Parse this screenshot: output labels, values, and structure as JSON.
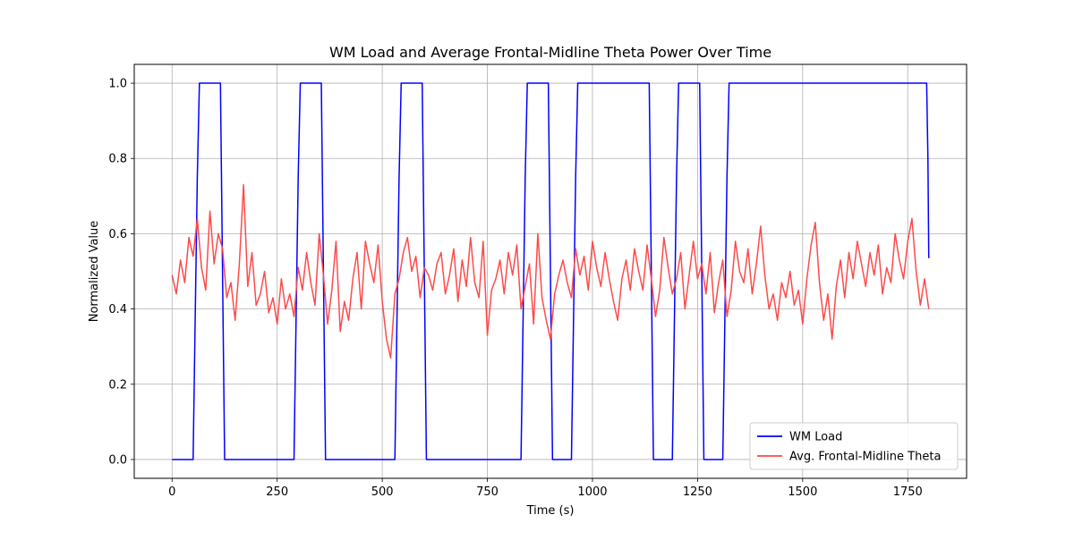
{
  "chart_data": {
    "type": "line",
    "title": "WM Load and Average Frontal-Midline Theta Power Over Time",
    "xlabel": "Time (s)",
    "ylabel": "Normalized Value",
    "xlim": [
      -90,
      1890
    ],
    "ylim": [
      -0.05,
      1.05
    ],
    "x_ticks": [
      0,
      250,
      500,
      750,
      1000,
      1250,
      1500,
      1750
    ],
    "x_tick_labels": [
      "0",
      "250",
      "500",
      "750",
      "1000",
      "1250",
      "1500",
      "1750"
    ],
    "y_ticks": [
      0.0,
      0.2,
      0.4,
      0.6,
      0.8,
      1.0
    ],
    "y_tick_labels": [
      "0.0",
      "0.2",
      "0.4",
      "0.6",
      "0.8",
      "1.0"
    ],
    "grid": true,
    "legend_position": "lower-right",
    "series": [
      {
        "name": "WM Load",
        "color": "#0000ff",
        "x": [
          0,
          50,
          60,
          65,
          115,
          120,
          125,
          290,
          300,
          305,
          355,
          360,
          365,
          530,
          540,
          545,
          595,
          600,
          605,
          830,
          840,
          845,
          895,
          900,
          905,
          950,
          960,
          965,
          1135,
          1140,
          1145,
          1190,
          1200,
          1205,
          1255,
          1260,
          1265,
          1310,
          1320,
          1325,
          1795,
          1798,
          1800
        ],
        "values": [
          0,
          0,
          0.75,
          1,
          1,
          0.5,
          0,
          0,
          0.75,
          1,
          1,
          0.5,
          0,
          0,
          0.75,
          1,
          1,
          0.5,
          0,
          0,
          0.75,
          1,
          1,
          0.5,
          0,
          0,
          0.75,
          1,
          1,
          0.5,
          0,
          0,
          0.75,
          1,
          1,
          0.5,
          0,
          0,
          0.75,
          1,
          1,
          0.8,
          0.535
        ]
      },
      {
        "name": "Avg. Frontal-Midline Theta",
        "color": "#ff4a4a",
        "x": [
          0,
          10,
          20,
          30,
          40,
          50,
          60,
          70,
          80,
          90,
          100,
          110,
          120,
          130,
          140,
          150,
          160,
          170,
          180,
          190,
          200,
          210,
          220,
          230,
          240,
          250,
          260,
          270,
          280,
          290,
          300,
          310,
          320,
          330,
          340,
          350,
          360,
          370,
          380,
          390,
          400,
          410,
          420,
          430,
          440,
          450,
          460,
          470,
          480,
          490,
          500,
          510,
          520,
          530,
          540,
          550,
          560,
          570,
          580,
          590,
          600,
          610,
          620,
          630,
          640,
          650,
          660,
          670,
          680,
          690,
          700,
          710,
          720,
          730,
          740,
          750,
          760,
          770,
          780,
          790,
          800,
          810,
          820,
          830,
          840,
          850,
          860,
          870,
          880,
          890,
          900,
          910,
          920,
          930,
          940,
          950,
          960,
          970,
          980,
          990,
          1000,
          1010,
          1020,
          1030,
          1040,
          1050,
          1060,
          1070,
          1080,
          1090,
          1100,
          1110,
          1120,
          1130,
          1140,
          1150,
          1160,
          1170,
          1180,
          1190,
          1200,
          1210,
          1220,
          1230,
          1240,
          1250,
          1260,
          1270,
          1280,
          1290,
          1300,
          1310,
          1320,
          1330,
          1340,
          1350,
          1360,
          1370,
          1380,
          1390,
          1400,
          1410,
          1420,
          1430,
          1440,
          1450,
          1460,
          1470,
          1480,
          1490,
          1500,
          1510,
          1520,
          1530,
          1540,
          1550,
          1560,
          1570,
          1580,
          1590,
          1600,
          1610,
          1620,
          1630,
          1640,
          1650,
          1660,
          1670,
          1680,
          1690,
          1700,
          1710,
          1720,
          1730,
          1740,
          1750,
          1760,
          1770,
          1780,
          1790,
          1800
        ],
        "values": [
          0.49,
          0.44,
          0.53,
          0.47,
          0.59,
          0.54,
          0.64,
          0.51,
          0.45,
          0.66,
          0.52,
          0.6,
          0.56,
          0.43,
          0.47,
          0.37,
          0.52,
          0.73,
          0.46,
          0.55,
          0.41,
          0.44,
          0.5,
          0.39,
          0.43,
          0.36,
          0.48,
          0.4,
          0.44,
          0.38,
          0.51,
          0.45,
          0.55,
          0.47,
          0.41,
          0.6,
          0.49,
          0.36,
          0.45,
          0.58,
          0.34,
          0.42,
          0.37,
          0.48,
          0.55,
          0.4,
          0.58,
          0.52,
          0.47,
          0.57,
          0.42,
          0.32,
          0.27,
          0.44,
          0.48,
          0.55,
          0.59,
          0.5,
          0.54,
          0.43,
          0.51,
          0.49,
          0.45,
          0.52,
          0.55,
          0.44,
          0.49,
          0.56,
          0.42,
          0.53,
          0.46,
          0.59,
          0.47,
          0.43,
          0.58,
          0.33,
          0.45,
          0.48,
          0.53,
          0.44,
          0.55,
          0.49,
          0.57,
          0.4,
          0.46,
          0.52,
          0.36,
          0.6,
          0.43,
          0.37,
          0.32,
          0.44,
          0.49,
          0.53,
          0.47,
          0.43,
          0.56,
          0.49,
          0.54,
          0.45,
          0.58,
          0.51,
          0.46,
          0.55,
          0.48,
          0.42,
          0.37,
          0.48,
          0.53,
          0.45,
          0.56,
          0.5,
          0.45,
          0.57,
          0.48,
          0.38,
          0.45,
          0.59,
          0.51,
          0.44,
          0.48,
          0.55,
          0.4,
          0.49,
          0.58,
          0.48,
          0.52,
          0.44,
          0.55,
          0.39,
          0.47,
          0.53,
          0.38,
          0.45,
          0.58,
          0.5,
          0.47,
          0.56,
          0.44,
          0.52,
          0.62,
          0.49,
          0.4,
          0.44,
          0.37,
          0.47,
          0.43,
          0.5,
          0.41,
          0.45,
          0.36,
          0.48,
          0.57,
          0.63,
          0.47,
          0.37,
          0.44,
          0.32,
          0.46,
          0.53,
          0.43,
          0.55,
          0.48,
          0.58,
          0.52,
          0.46,
          0.55,
          0.49,
          0.57,
          0.44,
          0.51,
          0.47,
          0.6,
          0.53,
          0.48,
          0.58,
          0.64,
          0.5,
          0.41,
          0.48,
          0.4
        ]
      }
    ]
  }
}
